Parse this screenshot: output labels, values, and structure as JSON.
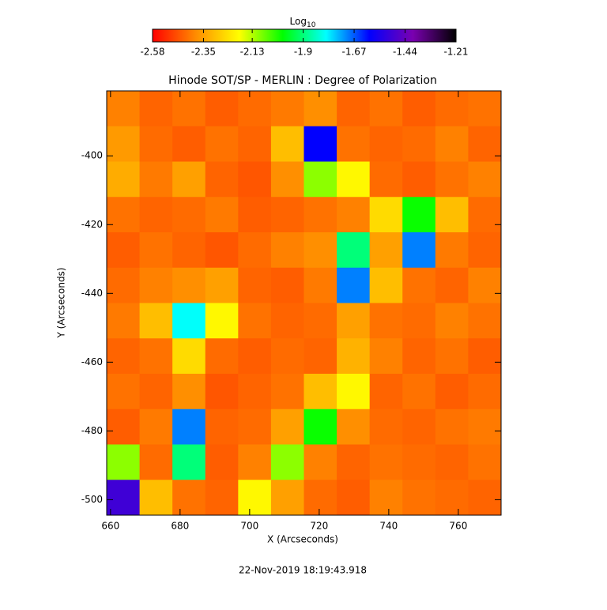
{
  "chart_data": {
    "type": "heatmap",
    "title": "Hinode SOT/SP - MERLIN : Degree of Polarization",
    "x_label": "X (Arcseconds)",
    "y_label": "Y (Arcseconds)",
    "footer": "22-Nov-2019 18:19:43.918",
    "colorbar_label": "Log",
    "colorbar_label_sub": "10",
    "colorbar_lim": [
      -2.58,
      -1.21
    ],
    "colorbar_ticks": [
      -2.58,
      -2.35,
      -2.13,
      -1.9,
      -1.67,
      -1.44,
      -1.21
    ],
    "colormap": [
      "#ff0000",
      "#ff8c00",
      "#ffff00",
      "#00ff00",
      "#00ffff",
      "#0000ff",
      "#7a00b0",
      "#000000"
    ],
    "xlim": [
      658.9,
      772.3
    ],
    "ylim": [
      -504.5,
      -381.1
    ],
    "xticks": [
      660,
      680,
      700,
      720,
      740,
      760
    ],
    "yticks": [
      -500,
      -480,
      -460,
      -440,
      -420,
      -400
    ],
    "z": [
      [
        -2.4,
        -2.44,
        -2.42,
        -2.45,
        -2.43,
        -2.41,
        -2.38,
        -2.44,
        -2.42,
        -2.45,
        -2.43,
        -2.42
      ],
      [
        -2.36,
        -2.43,
        -2.45,
        -2.42,
        -2.44,
        -2.3,
        -1.6,
        -2.42,
        -2.44,
        -2.43,
        -2.4,
        -2.44
      ],
      [
        -2.33,
        -2.41,
        -2.35,
        -2.44,
        -2.46,
        -2.38,
        -2.1,
        -2.2,
        -2.43,
        -2.45,
        -2.42,
        -2.4
      ],
      [
        -2.42,
        -2.44,
        -2.43,
        -2.41,
        -2.45,
        -2.44,
        -2.42,
        -2.4,
        -2.25,
        -2.0,
        -2.3,
        -2.43
      ],
      [
        -2.45,
        -2.42,
        -2.44,
        -2.46,
        -2.43,
        -2.4,
        -2.38,
        -1.9,
        -2.35,
        -1.7,
        -2.41,
        -2.44
      ],
      [
        -2.43,
        -2.4,
        -2.38,
        -2.35,
        -2.44,
        -2.45,
        -2.41,
        -1.7,
        -2.3,
        -2.42,
        -2.44,
        -2.4
      ],
      [
        -2.41,
        -2.3,
        -1.8,
        -2.2,
        -2.42,
        -2.44,
        -2.43,
        -2.35,
        -2.42,
        -2.43,
        -2.4,
        -2.42
      ],
      [
        -2.44,
        -2.42,
        -2.25,
        -2.43,
        -2.45,
        -2.43,
        -2.44,
        -2.32,
        -2.4,
        -2.44,
        -2.42,
        -2.45
      ],
      [
        -2.42,
        -2.44,
        -2.38,
        -2.46,
        -2.44,
        -2.42,
        -2.3,
        -2.2,
        -2.44,
        -2.42,
        -2.45,
        -2.43
      ],
      [
        -2.45,
        -2.41,
        -1.7,
        -2.44,
        -2.43,
        -2.35,
        -2.0,
        -2.38,
        -2.43,
        -2.44,
        -2.42,
        -2.41
      ],
      [
        -2.1,
        -2.43,
        -1.9,
        -2.45,
        -2.4,
        -2.1,
        -2.4,
        -2.44,
        -2.42,
        -2.43,
        -2.44,
        -2.42
      ],
      [
        -1.5,
        -2.3,
        -2.42,
        -2.44,
        -2.2,
        -2.35,
        -2.43,
        -2.45,
        -2.4,
        -2.42,
        -2.43,
        -2.44
      ]
    ]
  }
}
